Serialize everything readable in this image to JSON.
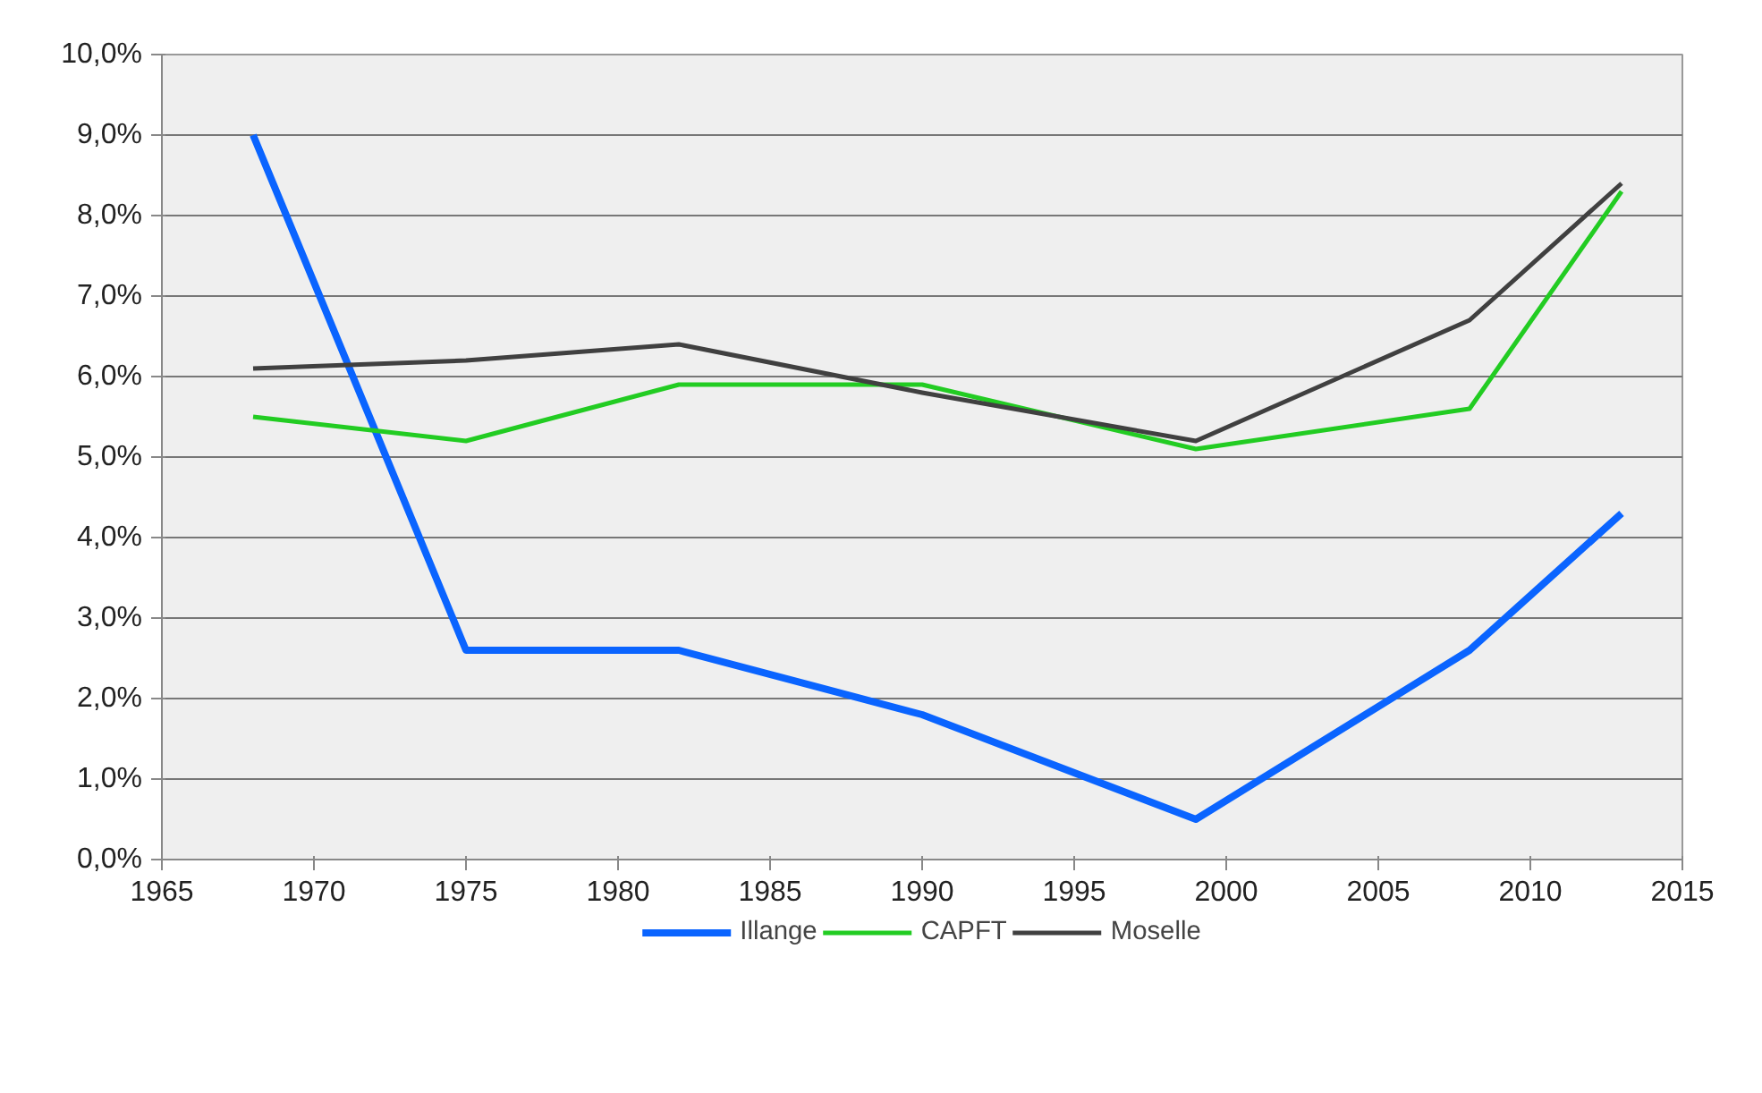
{
  "chart_data": {
    "type": "line",
    "x": [
      1968,
      1975,
      1982,
      1990,
      1999,
      2008,
      2013
    ],
    "series": [
      {
        "name": "Illange",
        "color": "#0a64ff",
        "values": [
          9.0,
          2.6,
          2.6,
          1.8,
          0.5,
          2.6,
          4.3
        ]
      },
      {
        "name": "CAPFT",
        "color": "#22cc22",
        "values": [
          5.5,
          5.2,
          5.9,
          5.9,
          5.1,
          5.6,
          8.3
        ]
      },
      {
        "name": "Moselle",
        "color": "#404040",
        "values": [
          6.1,
          6.2,
          6.4,
          5.8,
          5.2,
          6.7,
          8.4
        ]
      }
    ],
    "xlim": [
      1965,
      2015
    ],
    "xticks": [
      1965,
      1970,
      1975,
      1980,
      1985,
      1990,
      1995,
      2000,
      2005,
      2010,
      2015
    ],
    "ylim": [
      0,
      10
    ],
    "yticks": [
      {
        "value": 0,
        "label": "0,0%"
      },
      {
        "value": 1,
        "label": "1,0%"
      },
      {
        "value": 2,
        "label": "2,0%"
      },
      {
        "value": 3,
        "label": "3,0%"
      },
      {
        "value": 4,
        "label": "4,0%"
      },
      {
        "value": 5,
        "label": "5,0%"
      },
      {
        "value": 6,
        "label": "6,0%"
      },
      {
        "value": 7,
        "label": "7,0%"
      },
      {
        "value": 8,
        "label": "8,0%"
      },
      {
        "value": 9,
        "label": "9,0%"
      },
      {
        "value": 10,
        "label": "10,0%"
      }
    ],
    "grid": "y",
    "legend": "bottom",
    "marker": "none",
    "line_style": "solid"
  }
}
